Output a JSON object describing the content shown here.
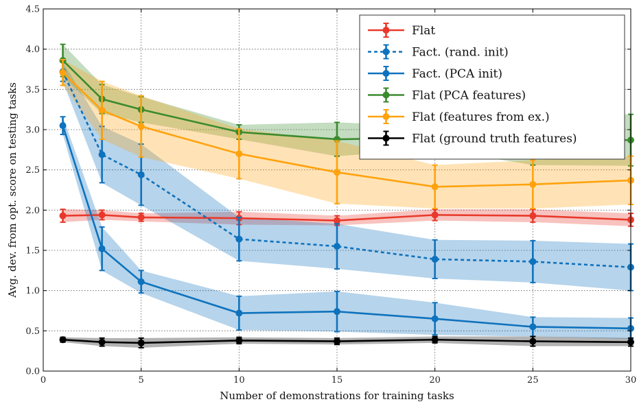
{
  "chart_data": {
    "type": "line",
    "xlabel": "Number of demonstrations for training tasks",
    "ylabel": "Avg. dev. from opt. score on testing tasks",
    "xlim": [
      0,
      30
    ],
    "ylim": [
      0.0,
      4.5
    ],
    "xticks": [
      0,
      5,
      10,
      15,
      20,
      25,
      30
    ],
    "yticks": [
      0.0,
      0.5,
      1.0,
      1.5,
      2.0,
      2.5,
      3.0,
      3.5,
      4.0,
      4.5
    ],
    "xtick_labels": [
      "0",
      "5",
      "10",
      "15",
      "20",
      "25",
      "30"
    ],
    "ytick_labels": [
      "0.0",
      "0.5",
      "1.0",
      "1.5",
      "2.0",
      "2.5",
      "3.0",
      "3.5",
      "4.0",
      "4.5"
    ],
    "grid": true,
    "legend_position": "top-right",
    "x": [
      1,
      3,
      5,
      10,
      15,
      20,
      25,
      30
    ],
    "series": [
      {
        "name": "Flat",
        "color": "#e8392b",
        "dash": false,
        "values": [
          1.93,
          1.94,
          1.91,
          1.9,
          1.87,
          1.94,
          1.93,
          1.88
        ],
        "lower": [
          1.85,
          1.88,
          1.86,
          1.82,
          1.81,
          1.87,
          1.85,
          1.8
        ],
        "upper": [
          2.01,
          2.0,
          1.96,
          1.98,
          1.93,
          2.01,
          2.01,
          1.96
        ]
      },
      {
        "name": "Fact. (rand. init)",
        "color": "#0e72bd",
        "dash": true,
        "values": [
          3.72,
          2.69,
          2.44,
          1.64,
          1.55,
          1.39,
          1.36,
          1.29
        ],
        "lower": [
          3.6,
          2.34,
          2.06,
          1.37,
          1.27,
          1.15,
          1.1,
          1.0
        ],
        "upper": [
          3.84,
          3.04,
          2.82,
          1.91,
          1.83,
          1.63,
          1.62,
          1.58
        ]
      },
      {
        "name": "Fact. (PCA init)",
        "color": "#0e72bd",
        "dash": false,
        "values": [
          3.05,
          1.52,
          1.11,
          0.72,
          0.74,
          0.65,
          0.55,
          0.53
        ],
        "lower": [
          2.94,
          1.25,
          0.97,
          0.51,
          0.49,
          0.45,
          0.43,
          0.4
        ],
        "upper": [
          3.16,
          1.79,
          1.25,
          0.93,
          0.99,
          0.85,
          0.67,
          0.66
        ]
      },
      {
        "name": "Flat (PCA features)",
        "color": "#3a8a2e",
        "dash": false,
        "values": [
          3.86,
          3.38,
          3.25,
          2.97,
          2.88,
          2.9,
          2.88,
          2.87
        ],
        "lower": [
          3.66,
          3.2,
          3.09,
          2.88,
          2.67,
          2.76,
          2.56,
          2.55
        ],
        "upper": [
          4.06,
          3.56,
          3.41,
          3.06,
          3.09,
          3.04,
          3.2,
          3.19
        ]
      },
      {
        "name": "Flat (features from ex.)",
        "color": "#ffa20e",
        "dash": false,
        "values": [
          3.71,
          3.24,
          3.04,
          2.7,
          2.47,
          2.29,
          2.32,
          2.37
        ],
        "lower": [
          3.55,
          2.88,
          2.66,
          2.39,
          2.08,
          2.02,
          2.02,
          2.07
        ],
        "upper": [
          3.87,
          3.6,
          3.42,
          3.01,
          2.86,
          2.56,
          2.62,
          2.67
        ]
      },
      {
        "name": "Flat (ground truth features)",
        "color": "#000000",
        "dash": false,
        "values": [
          0.39,
          0.36,
          0.35,
          0.38,
          0.37,
          0.39,
          0.37,
          0.36
        ],
        "lower": [
          0.36,
          0.31,
          0.29,
          0.34,
          0.33,
          0.35,
          0.31,
          0.31
        ],
        "upper": [
          0.42,
          0.41,
          0.41,
          0.42,
          0.41,
          0.43,
          0.43,
          0.41
        ]
      }
    ]
  }
}
